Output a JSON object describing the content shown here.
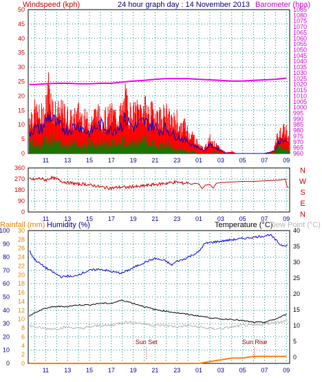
{
  "header": {
    "windspeed_label": "Windspeed (kph)",
    "title": "24 hour graph day : 14 November 2013",
    "barometer_label": "Barometer (hpa)"
  },
  "bottom_header": {
    "rainfall_label": "Rainfall (mm)",
    "humidity_label": "Humidity (%)",
    "temperature_label": "Temperature (°C)",
    "dewpoint_label": "Dew Point (°C)"
  },
  "colors": {
    "wind_gust": "#ff0000",
    "wind_avg": "#0000cc",
    "wind_low": "#008000",
    "barometer": "#ee00ee",
    "direction": "#cc0000",
    "humidity": "#0000cc",
    "temperature": "#000000",
    "dewpoint": "#b4b4b4",
    "rainfall": "#ff8000",
    "grid": "#008080",
    "windspeed_axis": "#cc0000",
    "barometer_axis": "#cc00cc",
    "rain_axis": "#e08000",
    "humidity_axis": "#000080"
  },
  "chart_data": [
    {
      "type": "bar",
      "name_id": "windspeed",
      "x_tick_labels": [
        "11",
        "13",
        "15",
        "17",
        "19",
        "21",
        "23",
        "01",
        "03",
        "05",
        "07",
        "09"
      ],
      "xlim": [
        9.4,
        33.3
      ],
      "ylim": [
        0,
        50
      ],
      "y_ticks": [
        0,
        5,
        10,
        15,
        20,
        25,
        30,
        35,
        40,
        45,
        50
      ],
      "y2lim": [
        960,
        1085
      ],
      "y2_ticks": [
        960,
        965,
        970,
        975,
        980,
        985,
        990,
        995,
        1000,
        1005,
        1010,
        1015,
        1020,
        1025,
        1030,
        1035,
        1040,
        1045,
        1050,
        1055,
        1060,
        1065,
        1070,
        1075,
        1080,
        1085
      ],
      "gust_envelope": [
        [
          9.5,
          17
        ],
        [
          10,
          19
        ],
        [
          10.5,
          17
        ],
        [
          11,
          20
        ],
        [
          11.3,
          33
        ],
        [
          11.6,
          22
        ],
        [
          12,
          18
        ],
        [
          12.5,
          19
        ],
        [
          13,
          17
        ],
        [
          13.5,
          15
        ],
        [
          14,
          19
        ],
        [
          14.5,
          16
        ],
        [
          15,
          14
        ],
        [
          15.5,
          18
        ],
        [
          16,
          17
        ],
        [
          16.5,
          16
        ],
        [
          17,
          18
        ],
        [
          17.5,
          17
        ],
        [
          18,
          19
        ],
        [
          18.3,
          25
        ],
        [
          18.6,
          19
        ],
        [
          19,
          18
        ],
        [
          19.5,
          20
        ],
        [
          20,
          21
        ],
        [
          20.5,
          18
        ],
        [
          21,
          19
        ],
        [
          21.5,
          17
        ],
        [
          22,
          18
        ],
        [
          22.5,
          14
        ],
        [
          23,
          16
        ],
        [
          23.3,
          10
        ],
        [
          23.6,
          14
        ],
        [
          24,
          10
        ],
        [
          24.5,
          8
        ],
        [
          25,
          4
        ],
        [
          25.5,
          2
        ],
        [
          26,
          7
        ],
        [
          26.5,
          4
        ],
        [
          27,
          2
        ],
        [
          27.5,
          0.5
        ],
        [
          28,
          1
        ],
        [
          28.5,
          0
        ],
        [
          29,
          0
        ],
        [
          30,
          0
        ],
        [
          31,
          0
        ],
        [
          31.8,
          1
        ],
        [
          32.2,
          8
        ],
        [
          32.6,
          10
        ],
        [
          33,
          11
        ],
        [
          33.2,
          7
        ]
      ],
      "avg_envelope": [
        [
          9.5,
          7
        ],
        [
          10,
          9
        ],
        [
          10.5,
          8
        ],
        [
          11,
          11
        ],
        [
          11.3,
          13
        ],
        [
          11.6,
          12
        ],
        [
          12,
          10
        ],
        [
          12.5,
          9
        ],
        [
          13,
          8
        ],
        [
          13.5,
          9
        ],
        [
          14,
          10
        ],
        [
          14.5,
          8
        ],
        [
          15,
          7
        ],
        [
          15.5,
          9
        ],
        [
          16,
          10
        ],
        [
          16.5,
          9
        ],
        [
          17,
          8
        ],
        [
          17.5,
          9
        ],
        [
          18,
          10
        ],
        [
          18.3,
          12
        ],
        [
          18.6,
          11
        ],
        [
          19,
          9
        ],
        [
          19.5,
          10
        ],
        [
          20,
          11
        ],
        [
          20.5,
          10
        ],
        [
          21,
          9
        ],
        [
          21.5,
          8
        ],
        [
          22,
          9
        ],
        [
          22.5,
          7
        ],
        [
          23,
          6
        ],
        [
          23.5,
          5
        ],
        [
          24,
          4
        ],
        [
          24.5,
          3
        ],
        [
          25,
          2
        ],
        [
          25.5,
          1
        ],
        [
          26,
          3
        ],
        [
          26.5,
          2
        ],
        [
          27,
          1
        ],
        [
          27.5,
          0
        ],
        [
          28,
          0
        ],
        [
          29,
          0
        ],
        [
          30,
          0
        ],
        [
          31,
          0
        ],
        [
          32,
          1
        ],
        [
          32.3,
          4
        ],
        [
          32.7,
          5
        ],
        [
          33,
          4
        ],
        [
          33.2,
          3
        ]
      ],
      "low_envelope": [
        [
          9.5,
          5
        ],
        [
          10,
          6
        ],
        [
          10.5,
          4
        ],
        [
          11,
          7
        ],
        [
          11.5,
          8
        ],
        [
          12,
          5
        ],
        [
          12.5,
          6
        ],
        [
          13,
          4
        ],
        [
          13.5,
          6
        ],
        [
          14,
          5
        ],
        [
          14.5,
          4
        ],
        [
          15,
          6
        ],
        [
          15.5,
          5
        ],
        [
          16,
          4
        ],
        [
          16.5,
          6
        ],
        [
          17,
          5
        ],
        [
          17.5,
          6
        ],
        [
          18,
          7
        ],
        [
          18.5,
          5
        ],
        [
          19,
          6
        ],
        [
          19.5,
          5
        ],
        [
          20,
          7
        ],
        [
          20.5,
          6
        ],
        [
          21,
          5
        ],
        [
          21.5,
          4
        ],
        [
          22,
          5
        ],
        [
          22.5,
          3
        ],
        [
          23,
          2
        ],
        [
          23.5,
          2
        ],
        [
          24,
          1
        ],
        [
          24.5,
          1
        ],
        [
          25,
          0
        ],
        [
          26,
          0
        ],
        [
          26.5,
          1
        ],
        [
          27,
          0
        ],
        [
          28,
          0
        ],
        [
          29,
          0
        ],
        [
          30,
          0
        ],
        [
          31,
          0
        ],
        [
          31.8,
          0
        ],
        [
          32.2,
          3
        ],
        [
          32.6,
          4
        ],
        [
          33,
          2
        ],
        [
          33.2,
          1
        ]
      ],
      "barometer": [
        [
          9.5,
          1020
        ],
        [
          10,
          1020
        ],
        [
          11,
          1020.5
        ],
        [
          12,
          1021
        ],
        [
          13,
          1021
        ],
        [
          14,
          1020.5
        ],
        [
          15,
          1020.5
        ],
        [
          16,
          1021
        ],
        [
          17,
          1021
        ],
        [
          18,
          1022
        ],
        [
          19,
          1023
        ],
        [
          20,
          1023.5
        ],
        [
          21,
          1024.5
        ],
        [
          22,
          1025
        ],
        [
          23,
          1025
        ],
        [
          24,
          1025
        ],
        [
          25,
          1024.5
        ],
        [
          26,
          1024
        ],
        [
          27,
          1023.5
        ],
        [
          28,
          1023
        ],
        [
          29,
          1023
        ],
        [
          30,
          1023.5
        ],
        [
          31,
          1024
        ],
        [
          32,
          1024.5
        ],
        [
          33,
          1025.5
        ]
      ]
    },
    {
      "type": "scatter",
      "name_id": "wind-direction",
      "ylim": [
        0,
        360
      ],
      "y_ticks": [
        0,
        90,
        180,
        270,
        360
      ],
      "y2_tick_labels": [
        "N",
        "W",
        "S",
        "E",
        "N"
      ],
      "direction": [
        [
          9.5,
          270
        ],
        [
          10,
          265
        ],
        [
          10.5,
          275
        ],
        [
          11,
          260
        ],
        [
          11.5,
          280
        ],
        [
          12,
          270
        ],
        [
          12.5,
          250
        ],
        [
          13,
          240
        ],
        [
          13.5,
          235
        ],
        [
          14,
          225
        ],
        [
          14.5,
          230
        ],
        [
          15,
          220
        ],
        [
          15.5,
          215
        ],
        [
          16,
          205
        ],
        [
          16.5,
          200
        ],
        [
          17,
          195
        ],
        [
          17.5,
          200
        ],
        [
          18,
          205
        ],
        [
          18.5,
          200
        ],
        [
          19,
          210
        ],
        [
          19.5,
          205
        ],
        [
          20,
          215
        ],
        [
          20.5,
          220
        ],
        [
          21,
          225
        ],
        [
          21.5,
          230
        ],
        [
          22,
          235
        ],
        [
          22.5,
          240
        ],
        [
          23,
          245
        ],
        [
          23.5,
          235
        ],
        [
          24,
          240
        ],
        [
          24.3,
          225
        ],
        [
          24.6,
          235
        ],
        [
          25,
          230
        ],
        [
          25.3,
          190
        ],
        [
          25.6,
          220
        ],
        [
          26,
          225
        ],
        [
          26.3,
          195
        ],
        [
          26.6,
          235
        ],
        [
          27,
          240
        ],
        [
          28,
          245
        ],
        [
          29,
          250
        ],
        [
          30,
          250
        ],
        [
          31,
          255
        ],
        [
          32,
          258
        ],
        [
          32.5,
          262
        ],
        [
          32.9,
          270
        ],
        [
          33,
          230
        ],
        [
          33.1,
          200
        ]
      ]
    },
    {
      "type": "line",
      "name_id": "temp-humidity-rain",
      "annotations": [
        {
          "x": 20.2,
          "text": "Sun Set"
        },
        {
          "x": 30.1,
          "text": "Sun Rise"
        }
      ],
      "humidity_ylim": [
        0,
        100
      ],
      "humidity_ticks": [
        0,
        10,
        20,
        30,
        40,
        50,
        60,
        70,
        80,
        90,
        100
      ],
      "rain_ylim": [
        0,
        30
      ],
      "rain_ticks": [
        0,
        2,
        4,
        6,
        8,
        10,
        12,
        14,
        16,
        18,
        20,
        22,
        24,
        26,
        28,
        30
      ],
      "temp_ylim": [
        -2,
        40
      ],
      "temp_ticks": [
        0,
        5,
        10,
        15,
        20,
        25,
        30,
        35,
        40
      ],
      "humidity": [
        [
          9.5,
          85
        ],
        [
          10,
          78
        ],
        [
          11,
          72
        ],
        [
          12,
          67
        ],
        [
          12.5,
          65
        ],
        [
          13,
          66
        ],
        [
          13.5,
          65
        ],
        [
          14,
          67
        ],
        [
          15,
          70
        ],
        [
          16,
          71
        ],
        [
          17,
          69
        ],
        [
          18,
          68
        ],
        [
          19,
          72
        ],
        [
          20,
          76
        ],
        [
          21,
          79
        ],
        [
          22,
          77
        ],
        [
          22.5,
          74
        ],
        [
          23,
          77
        ],
        [
          23.5,
          78
        ],
        [
          24,
          80
        ],
        [
          24.5,
          82
        ],
        [
          25,
          84
        ],
        [
          25.5,
          90
        ],
        [
          26,
          91
        ],
        [
          27,
          92
        ],
        [
          28,
          93
        ],
        [
          29,
          94
        ],
        [
          30,
          95
        ],
        [
          31,
          96
        ],
        [
          31.5,
          97
        ],
        [
          32,
          93
        ],
        [
          32.5,
          89
        ],
        [
          33,
          89
        ]
      ],
      "temperature": [
        [
          9.5,
          13
        ],
        [
          10,
          14
        ],
        [
          11,
          15.5
        ],
        [
          12,
          16
        ],
        [
          13,
          16
        ],
        [
          14,
          16.5
        ],
        [
          15,
          16.5
        ],
        [
          16,
          17
        ],
        [
          17,
          17
        ],
        [
          18,
          18
        ],
        [
          19,
          17
        ],
        [
          20,
          16
        ],
        [
          21,
          15
        ],
        [
          22,
          14.5
        ],
        [
          23,
          14
        ],
        [
          24,
          13.5
        ],
        [
          25,
          13
        ],
        [
          26,
          12.5
        ],
        [
          27,
          12
        ],
        [
          28,
          12
        ],
        [
          29,
          11.5
        ],
        [
          30,
          11
        ],
        [
          31,
          11
        ],
        [
          32,
          12
        ],
        [
          33,
          13.5
        ]
      ],
      "dewpoint": [
        [
          9.5,
          10
        ],
        [
          10,
          9.5
        ],
        [
          11,
          9
        ],
        [
          12,
          9
        ],
        [
          13,
          9.5
        ],
        [
          14,
          9
        ],
        [
          15,
          9.5
        ],
        [
          16,
          10
        ],
        [
          17,
          10
        ],
        [
          18,
          11
        ],
        [
          19,
          11
        ],
        [
          20,
          10.5
        ],
        [
          21,
          10
        ],
        [
          22,
          10
        ],
        [
          23,
          9.5
        ],
        [
          24,
          10
        ],
        [
          25,
          9.5
        ],
        [
          26,
          9
        ],
        [
          27,
          9
        ],
        [
          28,
          9.5
        ],
        [
          29,
          10
        ],
        [
          30,
          10
        ],
        [
          31,
          10.5
        ],
        [
          32,
          11
        ],
        [
          33,
          11.5
        ]
      ],
      "rainfall": [
        [
          9.5,
          0
        ],
        [
          25,
          0
        ],
        [
          25.5,
          0.2
        ],
        [
          26,
          0.4
        ],
        [
          27,
          0.8
        ],
        [
          27.5,
          1
        ],
        [
          28,
          1.2
        ],
        [
          29,
          1.2
        ],
        [
          29.5,
          1.4
        ],
        [
          30,
          1.6
        ],
        [
          31,
          1.6
        ],
        [
          32,
          1.6
        ],
        [
          33,
          1.6
        ]
      ]
    }
  ]
}
